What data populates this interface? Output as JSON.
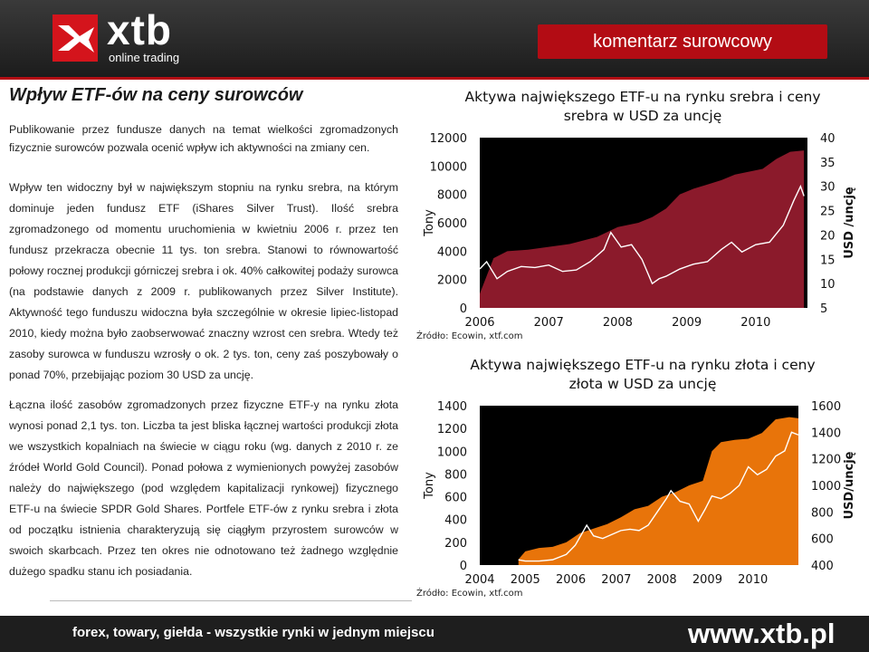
{
  "header": {
    "logo_text": "xtb",
    "logo_sub": "online trading",
    "banner": "komentarz surowcowy"
  },
  "article": {
    "title": "Wpływ ETF-ów na ceny surowców",
    "p1": "Publikowanie przez fundusze danych na temat wielkości zgromadzonych fizycznie surowców pozwala ocenić wpływ ich aktywności na zmiany cen.",
    "p2": "Wpływ ten widoczny był w największym stopniu na rynku srebra, na którym dominuje jeden fundusz ETF (iShares Silver Trust). Ilość srebra zgromadzonego od momentu uruchomienia w kwietniu 2006 r. przez ten fundusz przekracza obecnie 11 tys. ton srebra. Stanowi to równowartość połowy rocznej produkcji górniczej srebra i ok. 40% całkowitej podaży surowca (na podstawie danych z 2009 r. publikowanych przez Silver Institute). Aktywność tego funduszu widoczna była szczególnie w okresie lipiec-listopad 2010, kiedy można było zaobserwować znaczny wzrost cen srebra. Wtedy też zasoby surowca w funduszu wzrosły o ok. 2 tys. ton, ceny zaś poszybowały o ponad 70%, przebijając poziom 30 USD za uncję.",
    "p3": "Łączna ilość zasobów zgromadzonych przez fizyczne ETF-y na rynku złota wynosi ponad 2,1 tys. ton. Liczba ta jest bliska łącznej wartości produkcji złota we wszystkich kopalniach na świecie w ciągu roku (wg. danych z 2010 r. ze źródeł World Gold Council). Ponad połowa z wymienionych powyżej zasobów należy do największego (pod względem kapitalizacji rynkowej) fizycznego ETF-u na świecie SPDR Gold Shares. Portfele ETF-ów z rynku srebra i złota od początku istnienia charakteryzują się ciągłym przyrostem surowców w swoich skarbcach. Przez ten okres nie odnotowano też żadnego względnie dużego spadku stanu ich posiadania."
  },
  "footer": {
    "slogan": "forex, towary, giełda - wszystkie rynki w jednym miejscu",
    "url": "www.xtb.pl"
  },
  "colors": {
    "brand_red": "#b30c14",
    "silver_area": "#8b1a2b",
    "gold_area": "#e8740a",
    "price_line": "#ffffff",
    "plot_bg": "#000000"
  },
  "chart_data": [
    {
      "type": "area",
      "title": "Aktywa największego ETF-u na rynku srebra i ceny srebra w USD za uncję",
      "ylabel": "Tony",
      "y2label": "USD /uncję",
      "source": "Źródło: Ecowin, xtf.com",
      "ylim": [
        0,
        12000
      ],
      "y2lim": [
        5,
        40
      ],
      "yticks": [
        "12000",
        "10000",
        "8000",
        "6000",
        "4000",
        "2000",
        "0"
      ],
      "y2ticks": [
        "40",
        "35",
        "30",
        "25",
        "20",
        "15",
        "10",
        "5"
      ],
      "xticks": [
        {
          "label": "2006",
          "x": 2006.3
        },
        {
          "label": "2007",
          "x": 2007.3
        },
        {
          "label": "2008",
          "x": 2008.3
        },
        {
          "label": "2009",
          "x": 2009.3
        },
        {
          "label": "2010",
          "x": 2010.3
        }
      ],
      "xlim": [
        2006.3,
        2011.05
      ],
      "series": [
        {
          "axis": "left",
          "x": [
            2006.3,
            2006.5,
            2006.7,
            2007.0,
            2007.3,
            2007.6,
            2008.0,
            2008.3,
            2008.6,
            2008.8,
            2009.0,
            2009.2,
            2009.4,
            2009.6,
            2009.8,
            2010.0,
            2010.2,
            2010.4,
            2010.6,
            2010.8,
            2011.0
          ],
          "y": [
            1000,
            3500,
            4000,
            4100,
            4300,
            4500,
            5000,
            5700,
            6000,
            6400,
            7000,
            8000,
            8400,
            8700,
            9000,
            9400,
            9600,
            9800,
            10500,
            11000,
            11100
          ]
        },
        {
          "axis": "right",
          "x": [
            2006.3,
            2006.4,
            2006.55,
            2006.7,
            2006.9,
            2007.1,
            2007.3,
            2007.5,
            2007.7,
            2007.9,
            2008.1,
            2008.2,
            2008.35,
            2008.5,
            2008.65,
            2008.8,
            2008.9,
            2009.0,
            2009.2,
            2009.4,
            2009.6,
            2009.8,
            2009.95,
            2010.1,
            2010.3,
            2010.5,
            2010.7,
            2010.85,
            2010.95,
            2011.0
          ],
          "y": [
            13,
            14.5,
            11,
            12.5,
            13.5,
            13.3,
            13.8,
            12.5,
            12.8,
            14.5,
            17,
            20.5,
            17.5,
            18,
            15,
            10,
            11,
            11.5,
            13,
            14,
            14.5,
            17,
            18.5,
            16.5,
            18,
            18.5,
            22,
            27,
            30,
            28
          ]
        }
      ]
    },
    {
      "type": "area",
      "title": "Aktywa największego ETF-u na rynku złota i ceny złota w USD za uncję",
      "ylabel": "Tony",
      "y2label": "USD/uncję",
      "source": "Źródło: Ecowin, xtf.com",
      "ylim": [
        0,
        1400
      ],
      "y2lim": [
        400,
        1600
      ],
      "yticks": [
        "1400",
        "1200",
        "1000",
        "800",
        "600",
        "400",
        "200",
        "0"
      ],
      "y2ticks": [
        "1600",
        "1400",
        "1200",
        "1000",
        "800",
        "600",
        "400"
      ],
      "xticks": [
        {
          "label": "2004",
          "x": 2004.0
        },
        {
          "label": "2005",
          "x": 2005.0
        },
        {
          "label": "2006",
          "x": 2006.0
        },
        {
          "label": "2007",
          "x": 2007.0
        },
        {
          "label": "2008",
          "x": 2008.0
        },
        {
          "label": "2009",
          "x": 2009.0
        },
        {
          "label": "2010",
          "x": 2010.0
        }
      ],
      "xlim": [
        2004.0,
        2011.0
      ],
      "series": [
        {
          "axis": "left",
          "x": [
            2004.85,
            2005.0,
            2005.3,
            2005.6,
            2005.9,
            2006.2,
            2006.5,
            2006.8,
            2007.1,
            2007.4,
            2007.7,
            2008.0,
            2008.3,
            2008.6,
            2008.9,
            2009.1,
            2009.3,
            2009.6,
            2009.9,
            2010.2,
            2010.5,
            2010.8,
            2011.0
          ],
          "y": [
            50,
            120,
            150,
            160,
            200,
            280,
            320,
            360,
            420,
            490,
            520,
            600,
            640,
            700,
            740,
            1000,
            1080,
            1100,
            1110,
            1160,
            1280,
            1300,
            1290
          ]
        },
        {
          "axis": "right",
          "x": [
            2004.85,
            2005.0,
            2005.3,
            2005.6,
            2005.9,
            2006.1,
            2006.35,
            2006.5,
            2006.7,
            2006.9,
            2007.1,
            2007.3,
            2007.5,
            2007.7,
            2007.9,
            2008.1,
            2008.2,
            2008.4,
            2008.6,
            2008.8,
            2008.95,
            2009.1,
            2009.3,
            2009.5,
            2009.7,
            2009.9,
            2010.1,
            2010.3,
            2010.5,
            2010.7,
            2010.85,
            2011.0
          ],
          "y": [
            440,
            430,
            430,
            440,
            480,
            550,
            700,
            620,
            600,
            630,
            660,
            670,
            660,
            700,
            800,
            900,
            960,
            880,
            860,
            730,
            820,
            920,
            900,
            940,
            1000,
            1140,
            1080,
            1120,
            1220,
            1260,
            1400,
            1380
          ]
        }
      ]
    }
  ]
}
